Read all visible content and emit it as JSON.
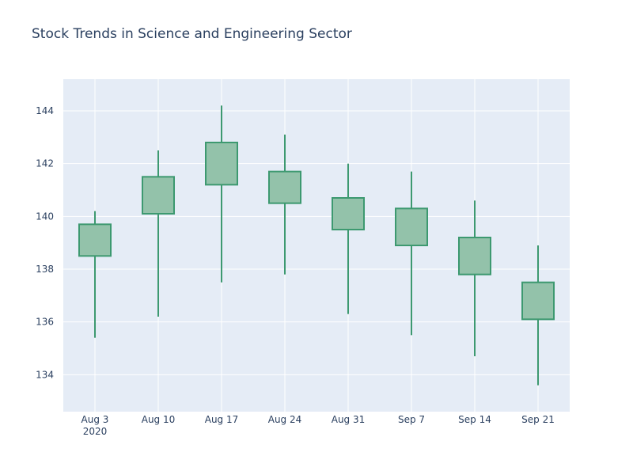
{
  "chart_data": {
    "type": "candlestick",
    "title": "Stock Trends in Science and Engineering Sector",
    "xlabel": "",
    "ylabel": "",
    "categories": [
      "Aug 3",
      "Aug 10",
      "Aug 17",
      "Aug 24",
      "Aug 31",
      "Sep 7",
      "Sep 14",
      "Sep 21"
    ],
    "x_year_label": "2020",
    "open": [
      138.5,
      140.1,
      141.2,
      140.5,
      139.5,
      138.9,
      137.8,
      136.1
    ],
    "high": [
      140.2,
      142.5,
      144.2,
      143.1,
      142.0,
      141.7,
      140.6,
      138.9
    ],
    "low": [
      135.4,
      136.2,
      137.5,
      137.8,
      136.3,
      135.5,
      134.7,
      133.6
    ],
    "close": [
      139.7,
      141.5,
      142.8,
      141.7,
      140.7,
      140.3,
      139.2,
      137.5
    ],
    "y_ticks": [
      134,
      136,
      138,
      140,
      142,
      144
    ],
    "ylim": [
      132.6,
      145.2
    ],
    "grid": true,
    "legend": "none",
    "colors": {
      "increasing_line": "#3d9970",
      "increasing_fill": "#93c2aa",
      "plot_background": "#e5ecf6",
      "grid": "#ffffff",
      "text": "#2a3f5f"
    }
  }
}
